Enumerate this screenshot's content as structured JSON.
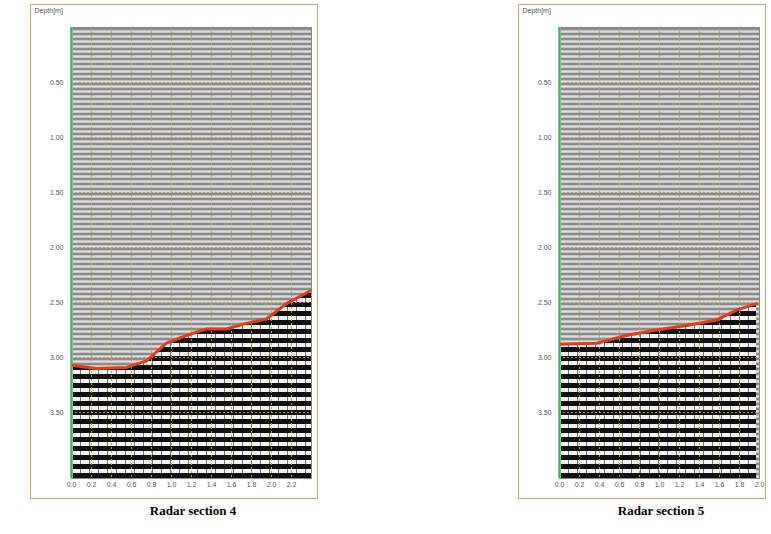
{
  "chart_data": [
    {
      "type": "line",
      "title": "Radar section 4",
      "ylabel": "Depth[m]",
      "x": [
        0,
        0.25,
        0.55,
        0.75,
        0.95,
        1.15,
        1.35,
        1.55,
        1.75,
        1.95,
        2.15,
        2.4
      ],
      "values": [
        3.07,
        3.1,
        3.09,
        3.03,
        2.87,
        2.8,
        2.74,
        2.74,
        2.69,
        2.65,
        2.51,
        2.39
      ],
      "color": "#e63a1e",
      "xlim": [
        0,
        2.4
      ],
      "xticks": [
        {
          "value": 0,
          "label": "0.0"
        },
        {
          "value": 0.2,
          "label": "0.2"
        },
        {
          "value": 0.4,
          "label": "0.4"
        },
        {
          "value": 0.6,
          "label": "0.6"
        },
        {
          "value": 0.8,
          "label": "0.8"
        },
        {
          "value": 1,
          "label": "1.0"
        },
        {
          "value": 1.2,
          "label": "1.2"
        },
        {
          "value": 1.4,
          "label": "1.4"
        },
        {
          "value": 1.6,
          "label": "1.6"
        },
        {
          "value": 1.8,
          "label": "1.8"
        },
        {
          "value": 2,
          "label": "2.0"
        },
        {
          "value": 2.2,
          "label": "2.2"
        }
      ],
      "ylim": [
        0,
        4.1
      ],
      "yticks": [
        {
          "value": 0.5,
          "label": "0.50"
        },
        {
          "value": 1,
          "label": "1.00"
        },
        {
          "value": 1.5,
          "label": "1.50"
        },
        {
          "value": 2,
          "label": "2.00"
        },
        {
          "value": 2.5,
          "label": "2.50"
        },
        {
          "value": 3,
          "label": "3.00"
        },
        {
          "value": 3.5,
          "label": "3.50"
        }
      ],
      "grid": true
    },
    {
      "type": "line",
      "title": "Radar section 5",
      "ylabel": "Depth[m]",
      "x": [
        0,
        0.37,
        0.67,
        0.97,
        1.27,
        1.57,
        1.77,
        1.97
      ],
      "values": [
        2.88,
        2.87,
        2.8,
        2.75,
        2.71,
        2.66,
        2.57,
        2.51
      ],
      "color": "#e63a1e",
      "xlim": [
        0,
        2.0
      ],
      "xticks": [
        {
          "value": 0,
          "label": "0.0"
        },
        {
          "value": 0.2,
          "label": "0.2"
        },
        {
          "value": 0.4,
          "label": "0.4"
        },
        {
          "value": 0.6,
          "label": "0.6"
        },
        {
          "value": 0.8,
          "label": "0.8"
        },
        {
          "value": 1,
          "label": "1.0"
        },
        {
          "value": 1.2,
          "label": "1.2"
        },
        {
          "value": 1.4,
          "label": "1.4"
        },
        {
          "value": 1.6,
          "label": "1.6"
        },
        {
          "value": 1.8,
          "label": "1.8"
        },
        {
          "value": 2,
          "label": "2.0"
        }
      ],
      "ylim": [
        0,
        4.1
      ],
      "yticks": [
        {
          "value": 0.5,
          "label": "0.50"
        },
        {
          "value": 1,
          "label": "1.00"
        },
        {
          "value": 1.5,
          "label": "1.50"
        },
        {
          "value": 2,
          "label": "2.00"
        },
        {
          "value": 2.5,
          "label": "2.50"
        },
        {
          "value": 3,
          "label": "3.00"
        },
        {
          "value": 3.5,
          "label": "3.50"
        }
      ],
      "grid": true
    }
  ]
}
